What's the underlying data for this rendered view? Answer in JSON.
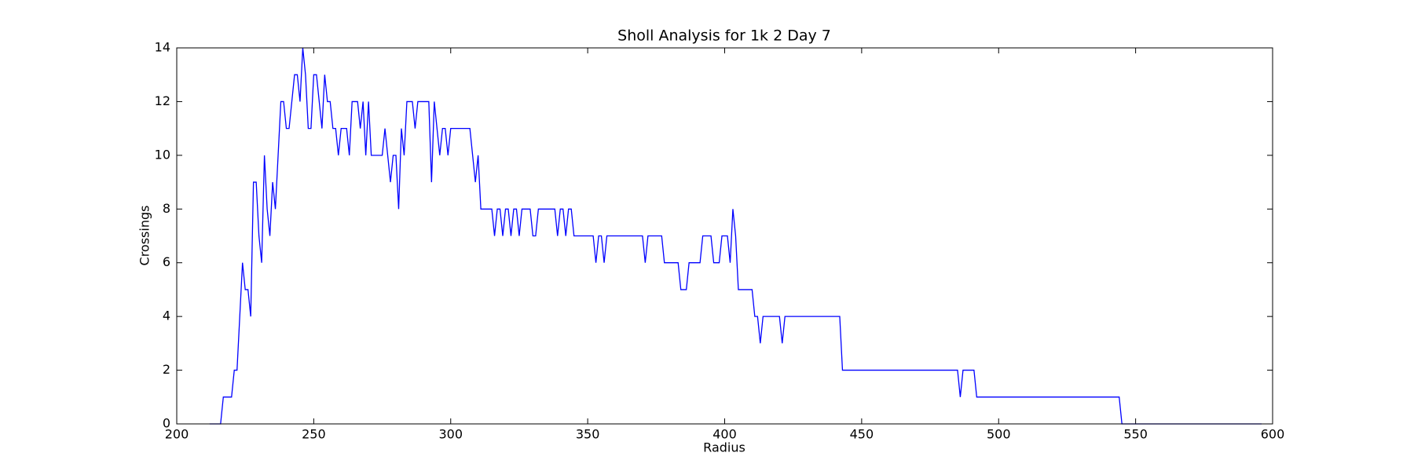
{
  "chart_data": {
    "type": "line",
    "title": "Sholl Analysis for 1k 2 Day 7",
    "xlabel": "Radius",
    "ylabel": "Crossings",
    "color": "#0000ff",
    "grid": false,
    "x": [
      212,
      216,
      217,
      220,
      221,
      222,
      224,
      225,
      226,
      227,
      228,
      229,
      230,
      231,
      232,
      233,
      234,
      235,
      236,
      237,
      238,
      239,
      240,
      241,
      242,
      243,
      244,
      245,
      246,
      247,
      248,
      249,
      250,
      251,
      252,
      253,
      254,
      255,
      256,
      257,
      258,
      259,
      260,
      262,
      263,
      264,
      266,
      267,
      268,
      269,
      270,
      271,
      275,
      276,
      277,
      278,
      279,
      280,
      281,
      282,
      283,
      284,
      286,
      287,
      288,
      292,
      293,
      294,
      295,
      296,
      297,
      298,
      299,
      300,
      307,
      308,
      309,
      310,
      311,
      315,
      316,
      317,
      318,
      319,
      320,
      321,
      322,
      323,
      324,
      325,
      326,
      329,
      330,
      331,
      332,
      338,
      339,
      340,
      341,
      342,
      343,
      344,
      345,
      352,
      353,
      354,
      355,
      356,
      357,
      370,
      371,
      372,
      377,
      378,
      383,
      384,
      386,
      387,
      391,
      392,
      395,
      396,
      398,
      399,
      401,
      402,
      403,
      404,
      405,
      410,
      411,
      412,
      413,
      414,
      420,
      421,
      422,
      442,
      443,
      485,
      486,
      487,
      491,
      492,
      544,
      545,
      596
    ],
    "values": [
      0,
      0,
      1,
      1,
      2,
      2,
      6,
      5,
      5,
      4,
      9,
      9,
      7,
      6,
      10,
      8,
      7,
      9,
      8,
      10,
      12,
      12,
      11,
      11,
      12,
      13,
      13,
      12,
      14,
      13,
      11,
      11,
      13,
      13,
      12,
      11,
      13,
      12,
      12,
      11,
      11,
      10,
      11,
      11,
      10,
      12,
      12,
      11,
      12,
      10,
      12,
      10,
      10,
      11,
      10,
      9,
      10,
      10,
      8,
      11,
      10,
      12,
      12,
      11,
      12,
      12,
      9,
      12,
      11,
      10,
      11,
      11,
      10,
      11,
      11,
      10,
      9,
      10,
      8,
      8,
      7,
      8,
      8,
      7,
      8,
      8,
      7,
      8,
      8,
      7,
      8,
      8,
      7,
      7,
      8,
      8,
      7,
      8,
      8,
      7,
      8,
      8,
      7,
      7,
      6,
      7,
      7,
      6,
      7,
      7,
      6,
      7,
      7,
      6,
      6,
      5,
      5,
      6,
      6,
      7,
      7,
      6,
      6,
      7,
      7,
      6,
      8,
      7,
      5,
      5,
      4,
      4,
      3,
      4,
      4,
      3,
      4,
      4,
      2,
      2,
      1,
      2,
      2,
      1,
      1,
      0,
      0
    ],
    "xlim": [
      200,
      600
    ],
    "xticks": [
      200,
      250,
      300,
      350,
      400,
      450,
      500,
      550,
      600
    ],
    "ylim": [
      0,
      14
    ],
    "yticks": [
      0,
      2,
      4,
      6,
      8,
      10,
      12,
      14
    ]
  }
}
